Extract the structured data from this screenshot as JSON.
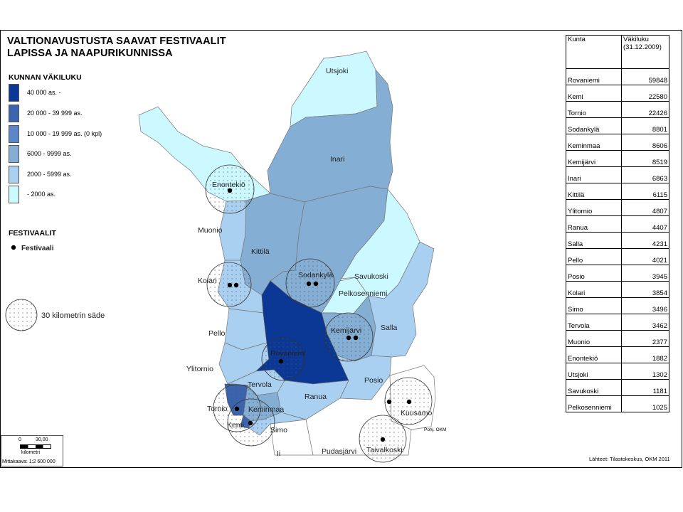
{
  "title_line1": "VALTIONAVUSTUSTA SAAVAT FESTIVAALIT",
  "title_line2": "LAPISSA JA NAAPURIKUNNISSA",
  "legend": {
    "population_title": "KUNNAN VÄKILUKU",
    "classes": [
      {
        "label": "40 000 as. -",
        "color": "#0b3795"
      },
      {
        "label": "20 000 - 39 999 as.",
        "color": "#3a64ae"
      },
      {
        "label": "10 000 - 19 999 as. (0 kpl)",
        "color": "#5b86c9"
      },
      {
        "label": "6000 - 9999 as.",
        "color": "#84aed4"
      },
      {
        "label": "2000 - 5999 as.",
        "color": "#a9d0f1"
      },
      {
        "label": "- 2000 as.",
        "color": "#ccf8ff"
      }
    ],
    "festival_title": "FESTIVAALIT",
    "festival_label": "Festivaali",
    "radius_label": "30 kilometrin säde"
  },
  "places": {
    "utsjoki": "Utsjoki",
    "inari": "Inari",
    "enontekio": "Enontekiö",
    "muonio": "Muonio",
    "kittila": "Kittilä",
    "kolari": "Kolari",
    "sodankyla": "Sodankylä",
    "savukoski": "Savukoski",
    "pelkosenniemi": "Pelkosenniemi",
    "pello": "Pello",
    "kemijarvi": "Kemijärvi",
    "salla": "Salla",
    "rovaniemi": "Rovaniemi",
    "ylitornio": "Ylitornio",
    "tervola": "Tervola",
    "posio": "Posio",
    "ranua": "Ranua",
    "tornio": "Tornio",
    "keminmaa": "Keminmaa",
    "kemi": "Kemi",
    "simo": "Simo",
    "kuusamo": "Kuusamo",
    "pudasjarvi": "Pudasjärvi",
    "taivalkoski": "Taivalkoski",
    "ii": "Ii"
  },
  "table": {
    "col1": "Kunta",
    "col2_line1": "Väkiluku",
    "col2_line2": "(31.12.2009)",
    "rows": [
      {
        "kunta": "Rovaniemi",
        "vakiluku": "59848"
      },
      {
        "kunta": "Kemi",
        "vakiluku": "22580"
      },
      {
        "kunta": "Tornio",
        "vakiluku": "22426"
      },
      {
        "kunta": "Sodankylä",
        "vakiluku": "8801"
      },
      {
        "kunta": "Keminmaa",
        "vakiluku": "8606"
      },
      {
        "kunta": "Kemijärvi",
        "vakiluku": "8519"
      },
      {
        "kunta": "Inari",
        "vakiluku": "6863"
      },
      {
        "kunta": "Kittilä",
        "vakiluku": "6115"
      },
      {
        "kunta": "Ylitornio",
        "vakiluku": "4807"
      },
      {
        "kunta": "Ranua",
        "vakiluku": "4407"
      },
      {
        "kunta": "Salla",
        "vakiluku": "4231"
      },
      {
        "kunta": "Pello",
        "vakiluku": "4021"
      },
      {
        "kunta": "Posio",
        "vakiluku": "3945"
      },
      {
        "kunta": "Kolari",
        "vakiluku": "3854"
      },
      {
        "kunta": "Simo",
        "vakiluku": "3496"
      },
      {
        "kunta": "Tervola",
        "vakiluku": "3462"
      },
      {
        "kunta": "Muonio",
        "vakiluku": "2377"
      },
      {
        "kunta": "Enontekiö",
        "vakiluku": "1882"
      },
      {
        "kunta": "Utsjoki",
        "vakiluku": "1302"
      },
      {
        "kunta": "Savukoski",
        "vakiluku": "1181"
      },
      {
        "kunta": "Pelkosenniemi",
        "vakiluku": "1025"
      }
    ]
  },
  "scale": {
    "ticks_left": "0",
    "ticks_right": "30,00",
    "unit": "kilometri",
    "ratio": "Mittakaava:  1:2 600 000"
  },
  "copyright": "Pohj. OKM",
  "source": "Lähteet: Tilastokeskus, OKM 2011"
}
